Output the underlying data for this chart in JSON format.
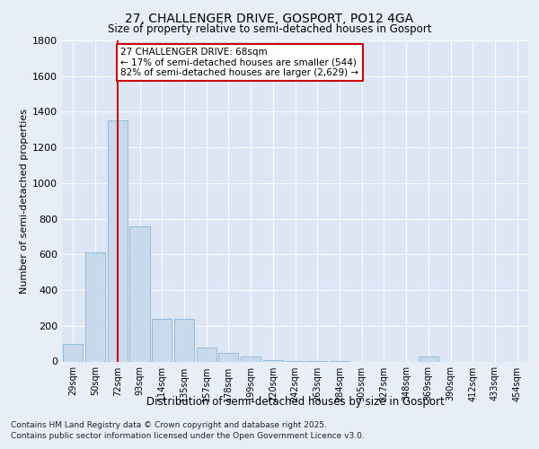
{
  "title1": "27, CHALLENGER DRIVE, GOSPORT, PO12 4GA",
  "title2": "Size of property relative to semi-detached houses in Gosport",
  "xlabel": "Distribution of semi-detached houses by size in Gosport",
  "ylabel": "Number of semi-detached properties",
  "categories": [
    "29sqm",
    "50sqm",
    "72sqm",
    "93sqm",
    "114sqm",
    "135sqm",
    "157sqm",
    "178sqm",
    "199sqm",
    "220sqm",
    "242sqm",
    "263sqm",
    "284sqm",
    "305sqm",
    "327sqm",
    "348sqm",
    "369sqm",
    "390sqm",
    "412sqm",
    "433sqm",
    "454sqm"
  ],
  "values": [
    100,
    610,
    1350,
    760,
    240,
    240,
    80,
    50,
    30,
    10,
    5,
    5,
    5,
    0,
    0,
    0,
    30,
    0,
    0,
    0,
    0
  ],
  "bar_color": "#c9d9ec",
  "bar_edge_color": "#7daed4",
  "highlight_bar_index": 2,
  "highlight_line_color": "#cc0000",
  "annotation_text": "27 CHALLENGER DRIVE: 68sqm\n← 17% of semi-detached houses are smaller (544)\n82% of semi-detached houses are larger (2,629) →",
  "ylim": [
    0,
    1800
  ],
  "yticks": [
    0,
    200,
    400,
    600,
    800,
    1000,
    1200,
    1400,
    1600,
    1800
  ],
  "background_color": "#e8eef7",
  "plot_bg_color": "#dce6f5",
  "grid_color": "#ffffff",
  "footer1": "Contains HM Land Registry data © Crown copyright and database right 2025.",
  "footer2": "Contains public sector information licensed under the Open Government Licence v3.0."
}
